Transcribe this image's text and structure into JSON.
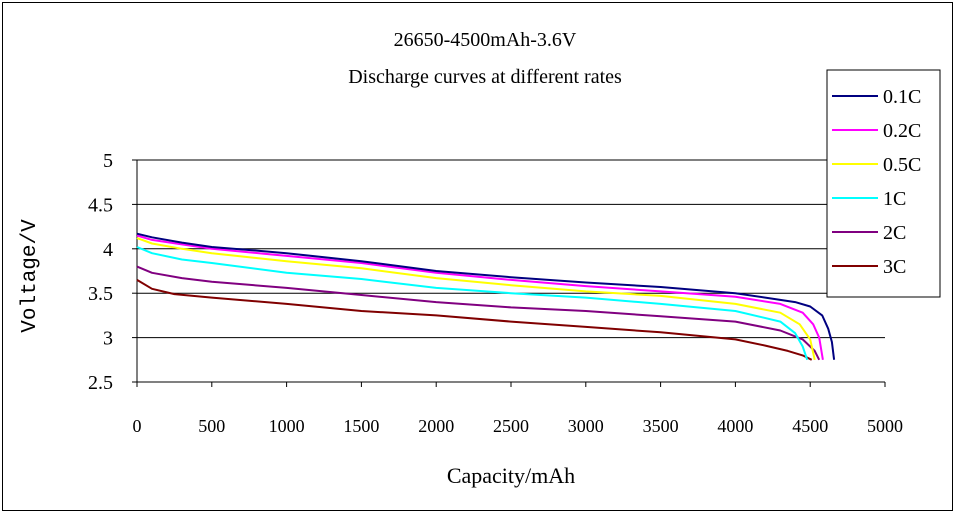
{
  "chart_data": {
    "type": "line",
    "title": "26650-4500mAh-3.6V",
    "subtitle": "Discharge curves at different rates",
    "xlabel": "Capacity/mAh",
    "ylabel": "Voltage/V",
    "xlim": [
      0,
      5000
    ],
    "ylim": [
      2.5,
      5
    ],
    "xticks": [
      "0",
      "500",
      "1000",
      "1500",
      "2000",
      "2500",
      "3000",
      "3500",
      "4000",
      "4500",
      "5000"
    ],
    "yticks": [
      "2.5",
      "3",
      "3.5",
      "4",
      "4.5",
      "5"
    ],
    "grid": "horizontal",
    "legend_position": "right",
    "series": [
      {
        "name": "0.1C",
        "color": "#000080",
        "points": [
          [
            0,
            4.17
          ],
          [
            100,
            4.13
          ],
          [
            300,
            4.07
          ],
          [
            500,
            4.02
          ],
          [
            800,
            3.98
          ],
          [
            1000,
            3.95
          ],
          [
            1500,
            3.86
          ],
          [
            2000,
            3.75
          ],
          [
            2500,
            3.68
          ],
          [
            3000,
            3.62
          ],
          [
            3500,
            3.57
          ],
          [
            4000,
            3.5
          ],
          [
            4200,
            3.45
          ],
          [
            4400,
            3.4
          ],
          [
            4500,
            3.35
          ],
          [
            4580,
            3.25
          ],
          [
            4620,
            3.1
          ],
          [
            4645,
            2.95
          ],
          [
            4660,
            2.75
          ]
        ]
      },
      {
        "name": "0.2C",
        "color": "#ff00ff",
        "points": [
          [
            0,
            4.15
          ],
          [
            100,
            4.1
          ],
          [
            300,
            4.05
          ],
          [
            500,
            4.0
          ],
          [
            1000,
            3.92
          ],
          [
            1500,
            3.84
          ],
          [
            2000,
            3.73
          ],
          [
            2500,
            3.65
          ],
          [
            3000,
            3.58
          ],
          [
            3500,
            3.52
          ],
          [
            4000,
            3.46
          ],
          [
            4300,
            3.38
          ],
          [
            4450,
            3.28
          ],
          [
            4520,
            3.15
          ],
          [
            4560,
            3.0
          ],
          [
            4585,
            2.75
          ]
        ]
      },
      {
        "name": "0.5C",
        "color": "#ffff00",
        "points": [
          [
            0,
            4.12
          ],
          [
            100,
            4.06
          ],
          [
            300,
            4.0
          ],
          [
            500,
            3.95
          ],
          [
            1000,
            3.86
          ],
          [
            1500,
            3.78
          ],
          [
            2000,
            3.67
          ],
          [
            2500,
            3.59
          ],
          [
            3000,
            3.52
          ],
          [
            3500,
            3.47
          ],
          [
            4000,
            3.38
          ],
          [
            4300,
            3.28
          ],
          [
            4430,
            3.15
          ],
          [
            4500,
            2.98
          ],
          [
            4530,
            2.75
          ]
        ]
      },
      {
        "name": "1C",
        "color": "#00ffff",
        "points": [
          [
            0,
            4.02
          ],
          [
            100,
            3.95
          ],
          [
            300,
            3.88
          ],
          [
            500,
            3.84
          ],
          [
            1000,
            3.73
          ],
          [
            1500,
            3.66
          ],
          [
            2000,
            3.56
          ],
          [
            2500,
            3.5
          ],
          [
            3000,
            3.45
          ],
          [
            3500,
            3.38
          ],
          [
            4000,
            3.3
          ],
          [
            4300,
            3.18
          ],
          [
            4400,
            3.05
          ],
          [
            4450,
            2.9
          ],
          [
            4480,
            2.75
          ]
        ]
      },
      {
        "name": "2C",
        "color": "#800080",
        "points": [
          [
            0,
            3.8
          ],
          [
            100,
            3.73
          ],
          [
            300,
            3.67
          ],
          [
            500,
            3.63
          ],
          [
            1000,
            3.56
          ],
          [
            1500,
            3.48
          ],
          [
            2000,
            3.4
          ],
          [
            2500,
            3.34
          ],
          [
            3000,
            3.3
          ],
          [
            3500,
            3.24
          ],
          [
            4000,
            3.18
          ],
          [
            4300,
            3.08
          ],
          [
            4450,
            2.98
          ],
          [
            4530,
            2.85
          ],
          [
            4560,
            2.75
          ]
        ]
      },
      {
        "name": "3C",
        "color": "#800000",
        "points": [
          [
            0,
            3.65
          ],
          [
            100,
            3.55
          ],
          [
            250,
            3.49
          ],
          [
            500,
            3.45
          ],
          [
            1000,
            3.38
          ],
          [
            1500,
            3.3
          ],
          [
            2000,
            3.25
          ],
          [
            2500,
            3.18
          ],
          [
            3000,
            3.12
          ],
          [
            3500,
            3.06
          ],
          [
            4000,
            2.98
          ],
          [
            4200,
            2.91
          ],
          [
            4350,
            2.85
          ],
          [
            4450,
            2.8
          ],
          [
            4510,
            2.75
          ]
        ]
      }
    ]
  }
}
